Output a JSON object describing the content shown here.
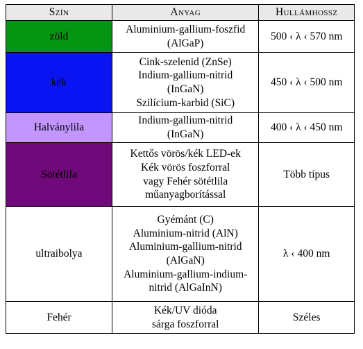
{
  "table": {
    "headers": {
      "color": "Szín",
      "material": "Anyag",
      "wavelength": "Hullámhossz"
    },
    "rows": [
      {
        "color_name": "zöld",
        "swatch": "#069413",
        "material_lines": [
          "Aluminium-gallium-foszfid",
          "(AlGaP)"
        ],
        "wavelength": "500 ‹ λ ‹ 570 nm"
      },
      {
        "color_name": "kék",
        "swatch": "#0a14f2",
        "material_lines": [
          "Cink-szelenid (ZnSe)",
          "Indium-gallium-nitrid",
          "(InGaN)",
          "Szilícium-karbid (SiC)"
        ],
        "wavelength": "450 ‹ λ ‹ 500 nm"
      },
      {
        "color_name": "Halványlila",
        "swatch": "#c295ff",
        "material_lines": [
          "Indium-gallium-nitrid",
          "(InGaN)"
        ],
        "wavelength": "400 ‹ λ ‹ 450 nm"
      },
      {
        "color_name": "Sötétlila",
        "swatch": "#70097a",
        "material_lines": [
          "Kettős vörös/kék LED-ek",
          "Kék vörös foszforral",
          "vagy Fehér sötétlila",
          "műanyagborítással"
        ],
        "wavelength": "Több típus"
      },
      {
        "color_name": "ultraibolya",
        "swatch": "#ffffff",
        "material_lines": [
          "Gyémánt (C)",
          "Aluminium-nitrid (AlN)",
          "Aluminium-gallium-nitrid",
          "(AlGaN)",
          "Aluminium-gallium-indium-",
          "nitrid (AlGaInN)"
        ],
        "wavelength": "λ ‹ 400 nm"
      },
      {
        "color_name": "Fehér",
        "swatch": "#ffffff",
        "material_lines": [
          "Kék/UV dióda",
          "sárga foszforral"
        ],
        "wavelength": "Széles"
      }
    ]
  }
}
